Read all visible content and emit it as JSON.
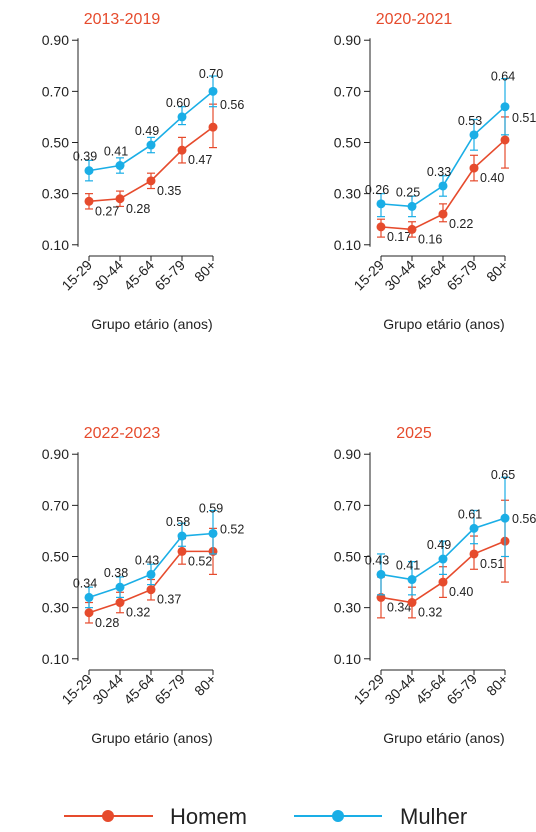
{
  "colors": {
    "homem": "#e64b2d",
    "mulher": "#1aaee6",
    "axis": "#222222",
    "title": "#e64b2d"
  },
  "legend": {
    "placement": "bottom",
    "homem": "Homem",
    "mulher": "Mulher"
  },
  "chart_data": [
    {
      "type": "line",
      "title": "2013-2019",
      "xlabel": "Grupo etário (anos)",
      "ylabel": "",
      "categories": [
        "15-29",
        "30-44",
        "45-64",
        "65-79",
        "80+"
      ],
      "yticks": [
        "0.90",
        "0.70",
        "0.50",
        "0.30",
        "0.10"
      ],
      "ylim": [
        0.06,
        0.94
      ],
      "series": [
        {
          "name": "Homem",
          "values": [
            0.27,
            0.28,
            0.35,
            0.47,
            0.56
          ],
          "labels": [
            "0.27",
            "0.28",
            "0.35",
            "0.47",
            "0.56"
          ],
          "ci_low": [
            0.24,
            0.25,
            0.32,
            0.42,
            0.48
          ],
          "ci_high": [
            0.3,
            0.31,
            0.38,
            0.52,
            0.65
          ]
        },
        {
          "name": "Mulher",
          "values": [
            0.39,
            0.41,
            0.49,
            0.6,
            0.7
          ],
          "labels": [
            "0.39",
            "0.41",
            "0.49",
            "0.60",
            "0.70"
          ],
          "ci_low": [
            0.35,
            0.38,
            0.46,
            0.57,
            0.64
          ],
          "ci_high": [
            0.43,
            0.44,
            0.52,
            0.64,
            0.76
          ]
        }
      ]
    },
    {
      "type": "line",
      "title": "2020-2021",
      "xlabel": "Grupo etário (anos)",
      "ylabel": "",
      "categories": [
        "15-29",
        "30-44",
        "45-64",
        "65-79",
        "80+"
      ],
      "yticks": [
        "0.90",
        "0.70",
        "0.50",
        "0.30",
        "0.10"
      ],
      "ylim": [
        0.06,
        0.94
      ],
      "series": [
        {
          "name": "Homem",
          "values": [
            0.17,
            0.16,
            0.22,
            0.4,
            0.51
          ],
          "labels": [
            "0.17",
            "0.16",
            "0.22",
            "0.40",
            "0.51"
          ],
          "ci_low": [
            0.13,
            0.13,
            0.19,
            0.35,
            0.4
          ],
          "ci_high": [
            0.2,
            0.19,
            0.26,
            0.45,
            0.6
          ]
        },
        {
          "name": "Mulher",
          "values": [
            0.26,
            0.25,
            0.33,
            0.53,
            0.64
          ],
          "labels": [
            "0.26",
            "0.25",
            "0.33",
            "0.53",
            "0.64"
          ],
          "ci_low": [
            0.21,
            0.21,
            0.29,
            0.47,
            0.53
          ],
          "ci_high": [
            0.3,
            0.29,
            0.37,
            0.59,
            0.75
          ]
        }
      ]
    },
    {
      "type": "line",
      "title": "2022-2023",
      "xlabel": "Grupo etário (anos)",
      "ylabel": "",
      "categories": [
        "15-29",
        "30-44",
        "45-64",
        "65-79",
        "80+"
      ],
      "yticks": [
        "0.90",
        "0.70",
        "0.50",
        "0.30",
        "0.10"
      ],
      "ylim": [
        0.06,
        0.94
      ],
      "series": [
        {
          "name": "Homem",
          "values": [
            0.28,
            0.32,
            0.37,
            0.52,
            0.52
          ],
          "labels": [
            "0.28",
            "0.32",
            "0.37",
            "0.52",
            "0.52"
          ],
          "ci_low": [
            0.24,
            0.28,
            0.33,
            0.47,
            0.43
          ],
          "ci_high": [
            0.32,
            0.36,
            0.41,
            0.57,
            0.61
          ]
        },
        {
          "name": "Mulher",
          "values": [
            0.34,
            0.38,
            0.43,
            0.58,
            0.59
          ],
          "labels": [
            "0.34",
            "0.38",
            "0.43",
            "0.58",
            "0.59"
          ],
          "ci_low": [
            0.3,
            0.34,
            0.39,
            0.54,
            0.51
          ],
          "ci_high": [
            0.38,
            0.42,
            0.47,
            0.63,
            0.68
          ]
        }
      ]
    },
    {
      "type": "line",
      "title": "2025",
      "xlabel": "Grupo etário (anos)",
      "ylabel": "",
      "categories": [
        "15-29",
        "30-44",
        "45-64",
        "65-79",
        "80+"
      ],
      "yticks": [
        "0.90",
        "0.70",
        "0.50",
        "0.30",
        "0.10"
      ],
      "ylim": [
        0.06,
        0.94
      ],
      "series": [
        {
          "name": "Homem",
          "values": [
            0.34,
            0.32,
            0.4,
            0.51,
            0.56
          ],
          "labels": [
            "0.34",
            "0.32",
            "0.40",
            "0.51",
            "0.56"
          ],
          "ci_low": [
            0.26,
            0.26,
            0.34,
            0.45,
            0.4
          ],
          "ci_high": [
            0.42,
            0.38,
            0.46,
            0.58,
            0.72
          ]
        },
        {
          "name": "Mulher",
          "values": [
            0.43,
            0.41,
            0.49,
            0.61,
            0.65
          ],
          "labels": [
            "0.43",
            "0.41",
            "0.49",
            "0.61",
            "0.65"
          ],
          "ci_low": [
            0.35,
            0.35,
            0.43,
            0.55,
            0.5
          ],
          "ci_high": [
            0.51,
            0.48,
            0.56,
            0.68,
            0.81
          ]
        }
      ]
    }
  ]
}
